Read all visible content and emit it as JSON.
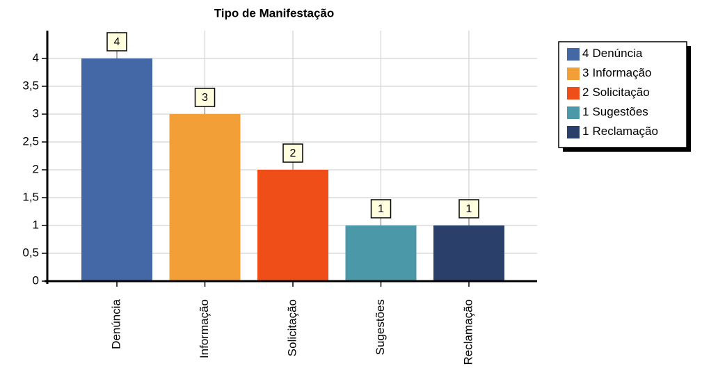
{
  "chart_data": {
    "type": "bar",
    "title": "Tipo de Manifestação",
    "categories": [
      "Denúncia",
      "Informação",
      "Solicitação",
      "Sugestões",
      "Reclamação"
    ],
    "values": [
      4,
      3,
      2,
      1,
      1
    ],
    "colors": [
      "#4467a5",
      "#f29f38",
      "#ef4e18",
      "#4b99a8",
      "#2b3f6b"
    ],
    "ylim": [
      0,
      4.5
    ],
    "yticks": [
      0,
      {
        "value": 0.5,
        "label": "0,5"
      },
      1,
      {
        "value": 1.5,
        "label": "1,5"
      },
      2,
      {
        "value": 2.5,
        "label": "2,5"
      },
      3,
      {
        "value": 3.5,
        "label": "3,5"
      },
      4
    ],
    "grid": true,
    "legend": "upper right"
  }
}
